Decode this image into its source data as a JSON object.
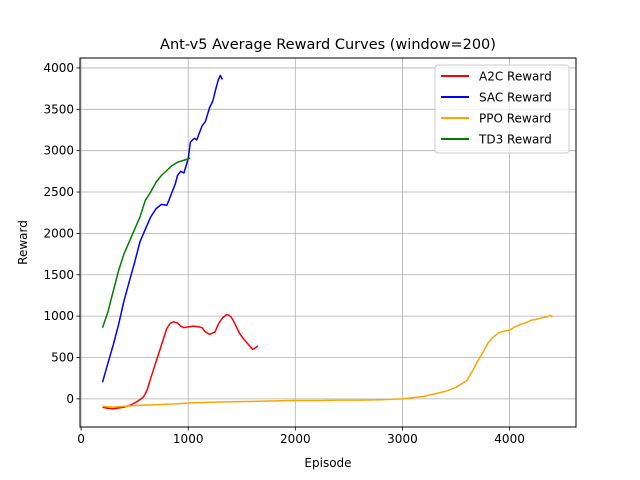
{
  "chart_data": {
    "type": "line",
    "title": "Ant-v5 Average Reward Curves (window=200)",
    "xlabel": "Episode",
    "ylabel": "Reward",
    "xlim": [
      -10,
      4620
    ],
    "ylim": [
      -340,
      4120
    ],
    "xticks": [
      0,
      1000,
      2000,
      3000,
      4000
    ],
    "yticks": [
      0,
      500,
      1000,
      1500,
      2000,
      2500,
      3000,
      3500,
      4000
    ],
    "grid": true,
    "legend_position": "upper right",
    "series": [
      {
        "name": "A2C Reward",
        "color": "#ff0000",
        "x": [
          200,
          250,
          300,
          350,
          400,
          450,
          500,
          550,
          580,
          600,
          620,
          650,
          700,
          750,
          800,
          830,
          860,
          900,
          930,
          960,
          1000,
          1050,
          1100,
          1130,
          1160,
          1200,
          1250,
          1280,
          1320,
          1360,
          1380,
          1400,
          1420,
          1450,
          1480,
          1520,
          1560,
          1600,
          1620,
          1650
        ],
        "y": [
          -100,
          -115,
          -120,
          -110,
          -100,
          -80,
          -50,
          -10,
          20,
          60,
          120,
          250,
          450,
          650,
          850,
          910,
          930,
          920,
          880,
          860,
          870,
          880,
          870,
          860,
          810,
          780,
          810,
          900,
          980,
          1020,
          1010,
          990,
          950,
          870,
          790,
          720,
          660,
          600,
          610,
          640
        ]
      },
      {
        "name": "SAC Reward",
        "color": "#0000ff",
        "x": [
          200,
          250,
          300,
          350,
          400,
          450,
          500,
          550,
          600,
          650,
          700,
          750,
          800,
          820,
          850,
          880,
          900,
          930,
          960,
          1000,
          1020,
          1040,
          1060,
          1080,
          1100,
          1130,
          1160,
          1200,
          1230,
          1260,
          1280,
          1300,
          1320
        ],
        "y": [
          200,
          430,
          650,
          900,
          1180,
          1420,
          1650,
          1900,
          2050,
          2200,
          2300,
          2350,
          2340,
          2400,
          2500,
          2600,
          2700,
          2750,
          2730,
          2900,
          3100,
          3130,
          3150,
          3130,
          3200,
          3300,
          3350,
          3520,
          3600,
          3760,
          3850,
          3910,
          3860
        ]
      },
      {
        "name": "PPO Reward",
        "color": "#ffa500",
        "x": [
          200,
          300,
          400,
          500,
          600,
          700,
          800,
          900,
          1000,
          1200,
          1400,
          1600,
          1800,
          2000,
          2200,
          2400,
          2600,
          2800,
          3000,
          3200,
          3400,
          3500,
          3600,
          3650,
          3700,
          3750,
          3800,
          3850,
          3900,
          3950,
          4000,
          4050,
          4100,
          4150,
          4200,
          4250,
          4300,
          4350,
          4380,
          4400
        ],
        "y": [
          -90,
          -100,
          -90,
          -80,
          -75,
          -70,
          -65,
          -60,
          -50,
          -40,
          -35,
          -30,
          -25,
          -20,
          -20,
          -15,
          -15,
          -10,
          0,
          30,
          90,
          140,
          220,
          330,
          450,
          560,
          680,
          750,
          800,
          820,
          830,
          870,
          900,
          920,
          950,
          960,
          980,
          990,
          1010,
          990
        ]
      },
      {
        "name": "TD3 Reward",
        "color": "#008000",
        "x": [
          200,
          250,
          300,
          350,
          400,
          450,
          500,
          550,
          600,
          650,
          700,
          750,
          800,
          850,
          900,
          950,
          1000,
          1020
        ],
        "y": [
          860,
          1050,
          1300,
          1550,
          1750,
          1900,
          2050,
          2200,
          2400,
          2500,
          2620,
          2700,
          2760,
          2820,
          2860,
          2880,
          2900,
          2910
        ]
      }
    ]
  }
}
